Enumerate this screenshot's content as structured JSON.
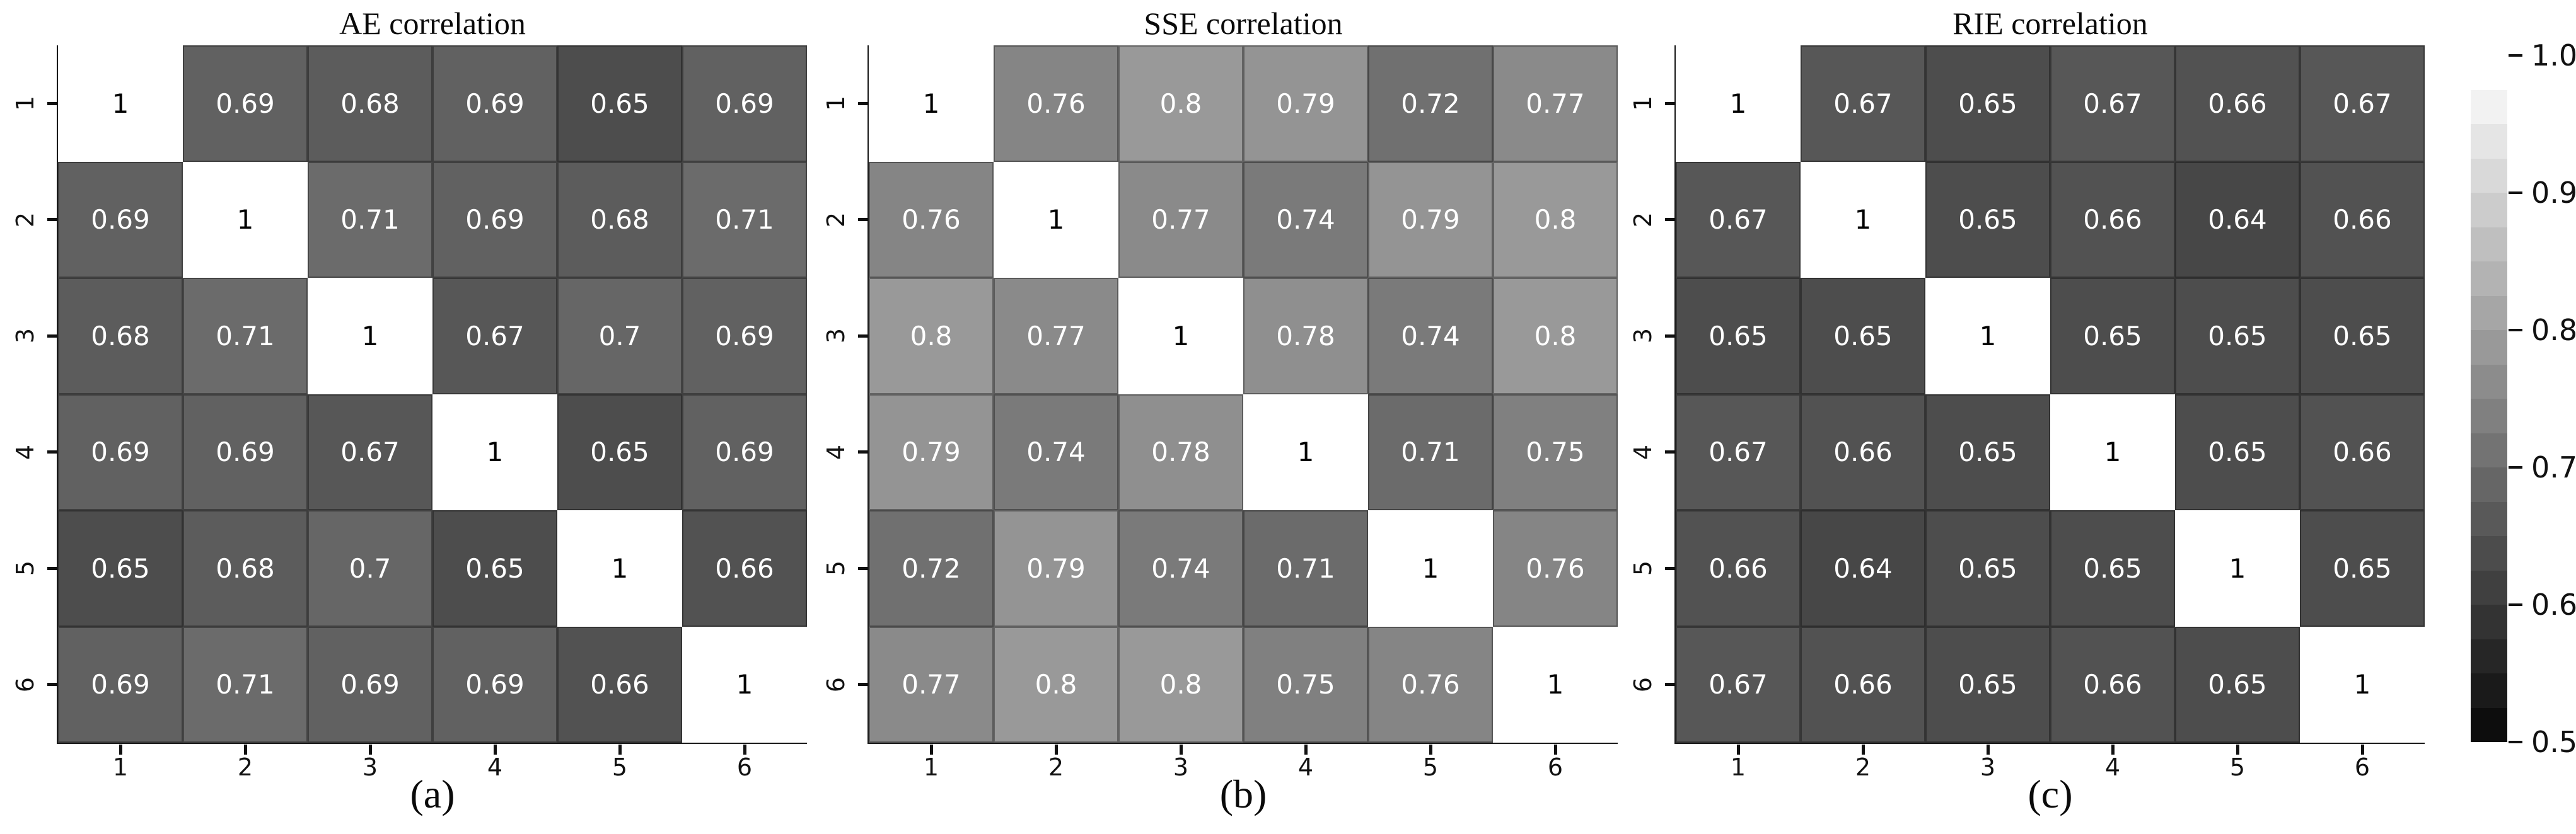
{
  "figure": {
    "background": "#ffffff",
    "colormap": {
      "style": "grayscale",
      "low_color": "#000000",
      "high_color": "#ffffff",
      "vmin": 0.5,
      "vmax": 1.0,
      "levels": 20
    }
  },
  "chart_data": [
    {
      "type": "heatmap",
      "title": "AE correlation",
      "sublabel": "(a)",
      "x_tick_labels": [
        "1",
        "2",
        "3",
        "4",
        "5",
        "6"
      ],
      "y_tick_labels": [
        "1",
        "2",
        "3",
        "4",
        "5",
        "6"
      ],
      "value_range": [
        0.5,
        1.0
      ],
      "values": [
        [
          1,
          0.69,
          0.68,
          0.69,
          0.65,
          0.69
        ],
        [
          0.69,
          1,
          0.71,
          0.69,
          0.68,
          0.71
        ],
        [
          0.68,
          0.71,
          1,
          0.67,
          0.7,
          0.69
        ],
        [
          0.69,
          0.69,
          0.67,
          1,
          0.65,
          0.69
        ],
        [
          0.65,
          0.68,
          0.7,
          0.65,
          1,
          0.66
        ],
        [
          0.69,
          0.71,
          0.69,
          0.69,
          0.66,
          1
        ]
      ]
    },
    {
      "type": "heatmap",
      "title": "SSE correlation",
      "sublabel": "(b)",
      "x_tick_labels": [
        "1",
        "2",
        "3",
        "4",
        "5",
        "6"
      ],
      "y_tick_labels": [
        "1",
        "2",
        "3",
        "4",
        "5",
        "6"
      ],
      "value_range": [
        0.5,
        1.0
      ],
      "values": [
        [
          1,
          0.76,
          0.8,
          0.79,
          0.72,
          0.77
        ],
        [
          0.76,
          1,
          0.77,
          0.74,
          0.79,
          0.8
        ],
        [
          0.8,
          0.77,
          1,
          0.78,
          0.74,
          0.8
        ],
        [
          0.79,
          0.74,
          0.78,
          1,
          0.71,
          0.75
        ],
        [
          0.72,
          0.79,
          0.74,
          0.71,
          1,
          0.76
        ],
        [
          0.77,
          0.8,
          0.8,
          0.75,
          0.76,
          1
        ]
      ]
    },
    {
      "type": "heatmap",
      "title": "RIE correlation",
      "sublabel": "(c)",
      "x_tick_labels": [
        "1",
        "2",
        "3",
        "4",
        "5",
        "6"
      ],
      "y_tick_labels": [
        "1",
        "2",
        "3",
        "4",
        "5",
        "6"
      ],
      "value_range": [
        0.5,
        1.0
      ],
      "values": [
        [
          1,
          0.67,
          0.65,
          0.67,
          0.66,
          0.67
        ],
        [
          0.67,
          1,
          0.65,
          0.66,
          0.64,
          0.66
        ],
        [
          0.65,
          0.65,
          1,
          0.65,
          0.65,
          0.65
        ],
        [
          0.67,
          0.66,
          0.65,
          1,
          0.65,
          0.66
        ],
        [
          0.66,
          0.64,
          0.65,
          0.65,
          1,
          0.65
        ],
        [
          0.67,
          0.66,
          0.65,
          0.66,
          0.65,
          1
        ]
      ]
    }
  ],
  "colorbar": {
    "tick_labels": [
      "1.0",
      "0.9",
      "0.8",
      "0.7",
      "0.6",
      "0.5"
    ],
    "tick_values": [
      1.0,
      0.9,
      0.8,
      0.7,
      0.6,
      0.5
    ],
    "min": 0.5,
    "max": 1.0,
    "levels": 20
  }
}
